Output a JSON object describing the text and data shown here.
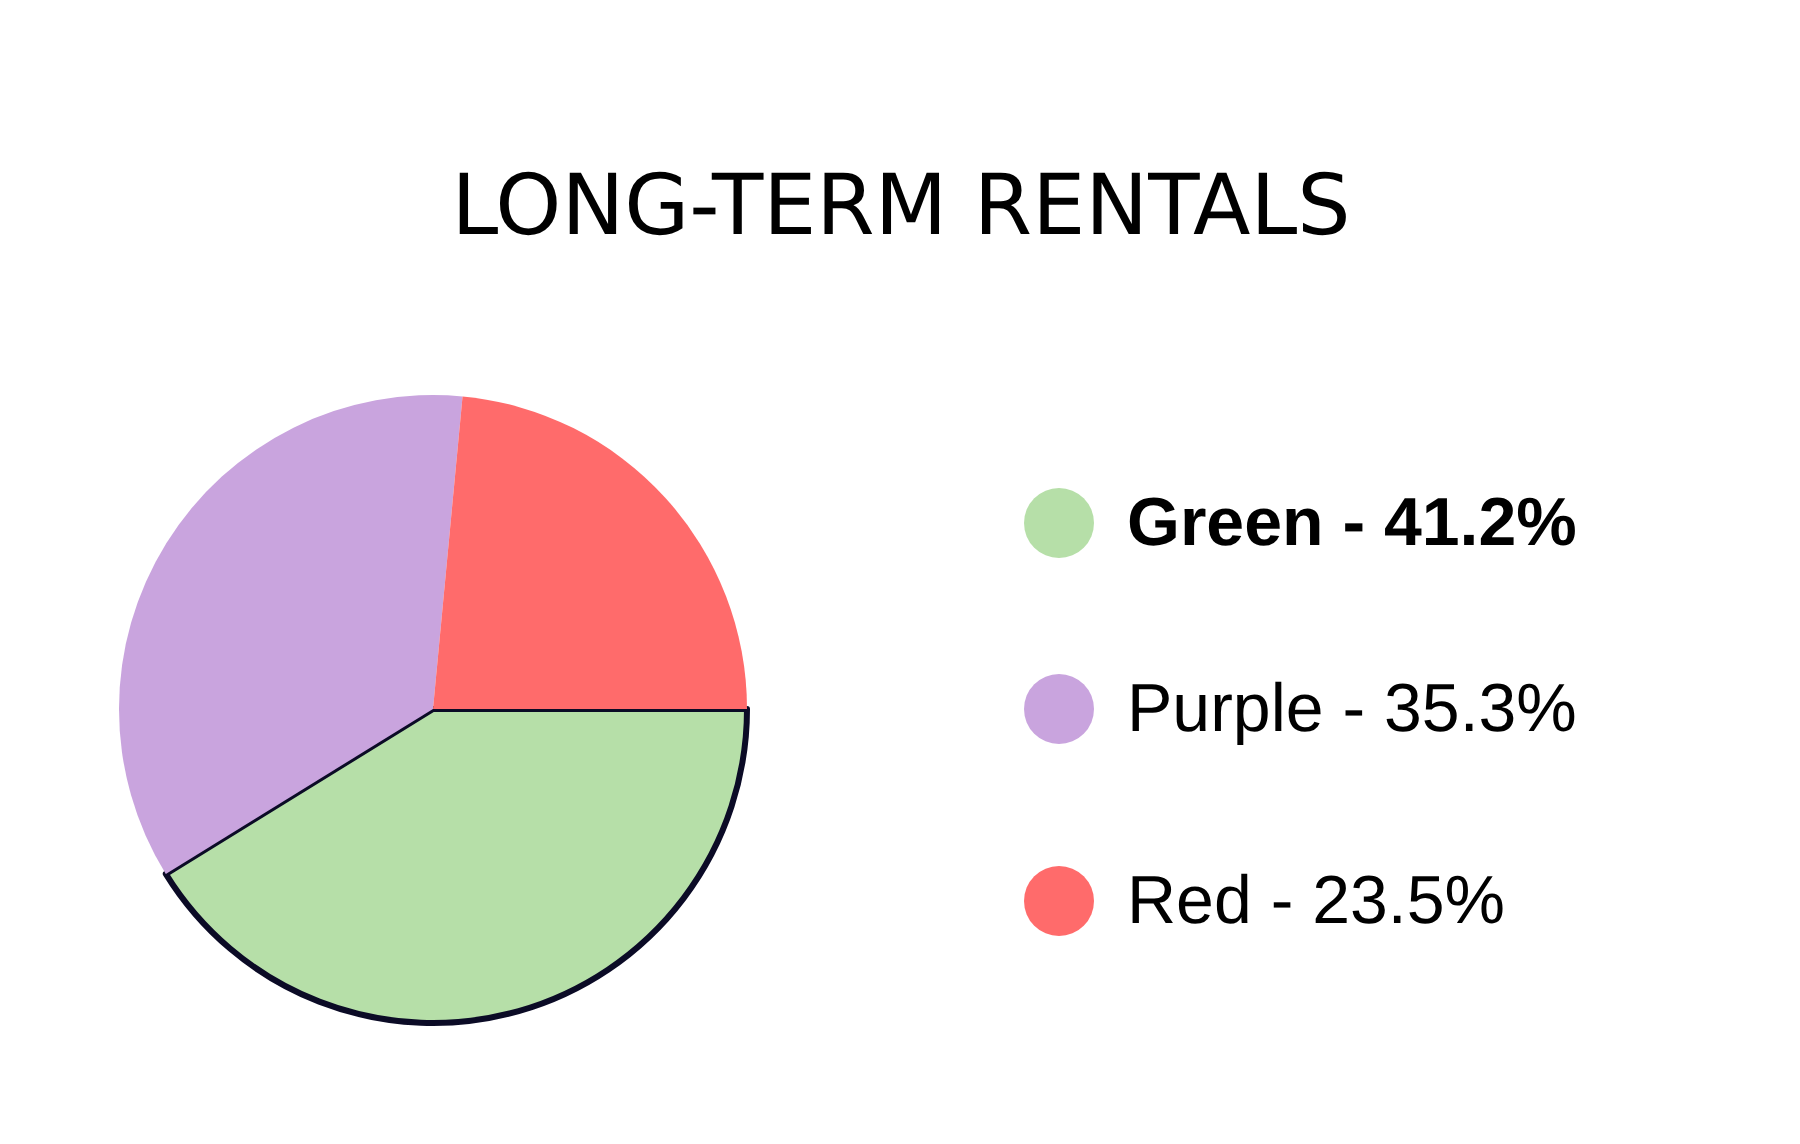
{
  "chart_data": {
    "type": "pie",
    "title": "LONG-TERM RENTALS",
    "categories": [
      "Green - 41.2%",
      "Purple - 35.3%",
      "Red - 23.5%"
    ],
    "values": [
      41.2,
      35.3,
      23.5
    ],
    "colors": [
      "#b6dfa8",
      "#c9a4de",
      "#ff6b6b"
    ],
    "legend": "right"
  }
}
